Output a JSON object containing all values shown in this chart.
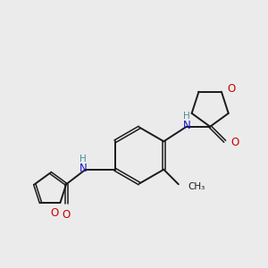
{
  "bg_color": "#ebebeb",
  "bond_color": "#1a1a1a",
  "oxygen_color": "#cc0000",
  "nitrogen_color": "#1414cc",
  "hydrogen_color": "#4a9090",
  "figsize": [
    3.0,
    3.0
  ],
  "dpi": 100,
  "lw": 1.4,
  "lw_double": 1.1,
  "double_sep": 0.09,
  "xlim": [
    0,
    10
  ],
  "ylim": [
    0,
    10
  ]
}
